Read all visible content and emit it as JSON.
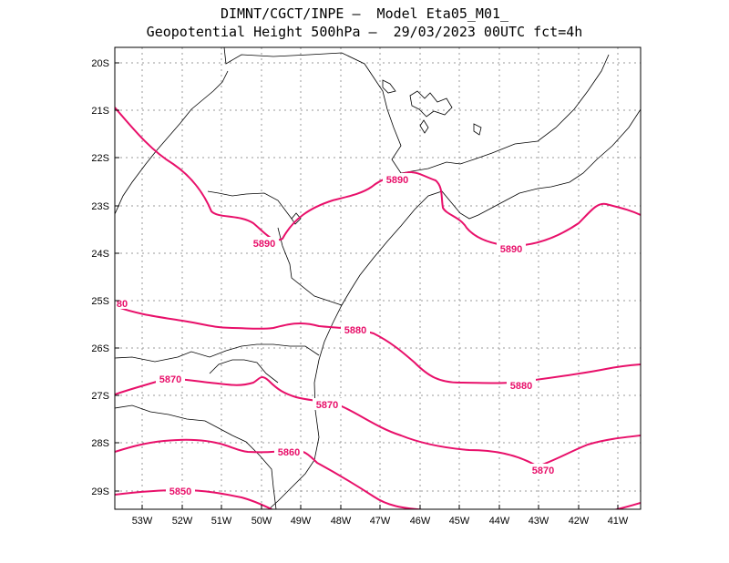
{
  "header": {
    "title_line1": "DIMNT/CGCT/INPE —  Model Eta05_M01_",
    "title_line2": "Geopotential Height 500hPa —  29/03/2023 00UTC fct=4h"
  },
  "map": {
    "lat_labels": [
      "20S",
      "21S",
      "22S",
      "23S",
      "24S",
      "25S",
      "26S",
      "27S",
      "28S",
      "29S"
    ],
    "lon_labels": [
      "53W",
      "52W",
      "51W",
      "50W",
      "49W",
      "48W",
      "47W",
      "46W",
      "45W",
      "44W",
      "43W",
      "42W",
      "41W"
    ],
    "grid": true,
    "contour_color": "#e8106a",
    "coast_color": "#000000",
    "contour_labels": [
      "5890",
      "5890",
      "5890",
      "80",
      "5880",
      "5880",
      "5870",
      "5870",
      "5870",
      "5860",
      "5850"
    ]
  }
}
